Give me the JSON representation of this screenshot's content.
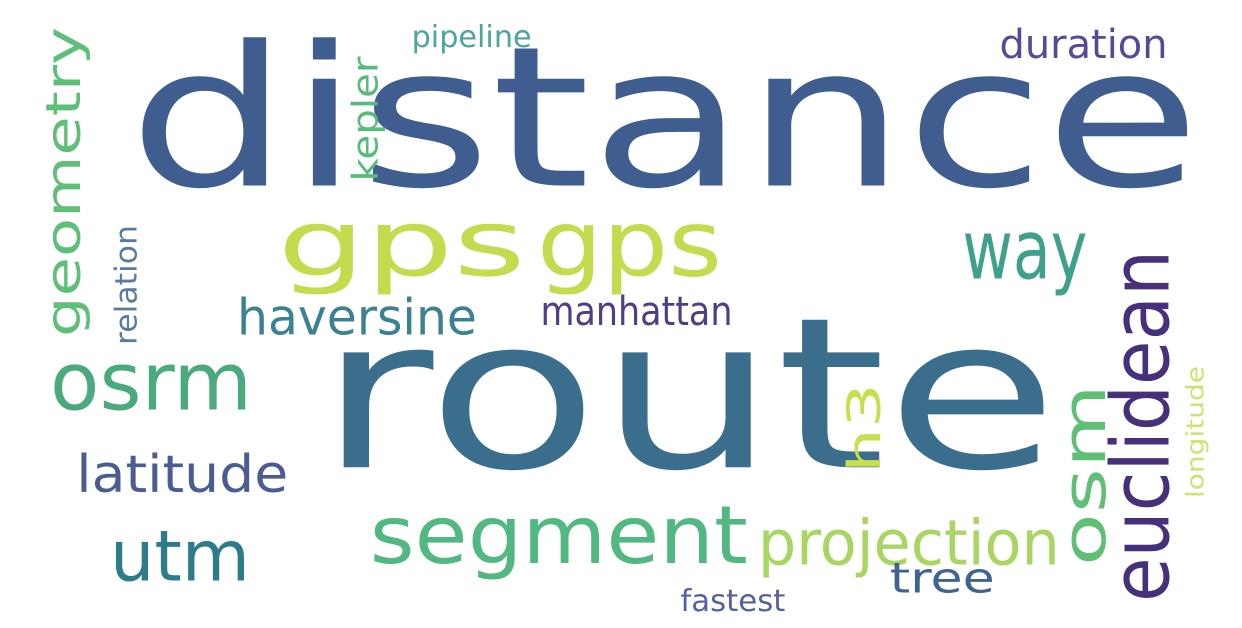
{
  "words": [
    {
      "id": "distance",
      "text": "distance",
      "color": "#3f5e8f",
      "orientation": "horizontal"
    },
    {
      "id": "route",
      "text": "route",
      "color": "#3b6e8c",
      "orientation": "horizontal"
    },
    {
      "id": "gps1",
      "text": "gps",
      "color": "#c3dc4e",
      "orientation": "horizontal"
    },
    {
      "id": "gps2",
      "text": "gps",
      "color": "#c3dc4e",
      "orientation": "horizontal"
    },
    {
      "id": "segment",
      "text": "segment",
      "color": "#52b881",
      "orientation": "horizontal"
    },
    {
      "id": "euclidean",
      "text": "euclidean",
      "color": "#46307a",
      "orientation": "vertical"
    },
    {
      "id": "osm",
      "text": "osm",
      "color": "#5fc075",
      "orientation": "vertical"
    },
    {
      "id": "way",
      "text": "way",
      "color": "#3fa08b",
      "orientation": "horizontal"
    },
    {
      "id": "osrm",
      "text": "osrm",
      "color": "#4aaa7e",
      "orientation": "horizontal"
    },
    {
      "id": "utm",
      "text": "utm",
      "color": "#2e7b8a",
      "orientation": "horizontal"
    },
    {
      "id": "geometry",
      "text": "geometry",
      "color": "#5fbe78",
      "orientation": "vertical"
    },
    {
      "id": "projection",
      "text": "projection",
      "color": "#a9d662",
      "orientation": "horizontal"
    },
    {
      "id": "haversine",
      "text": "haversine",
      "color": "#3a8291",
      "orientation": "horizontal"
    },
    {
      "id": "latitude",
      "text": "latitude",
      "color": "#4b5c92",
      "orientation": "horizontal"
    },
    {
      "id": "h3",
      "text": "h3",
      "color": "#c7df4c",
      "orientation": "vertical"
    },
    {
      "id": "tree",
      "text": "tree",
      "color": "#3f6494",
      "orientation": "horizontal"
    },
    {
      "id": "manhattan",
      "text": "manhattan",
      "color": "#4f3d86",
      "orientation": "horizontal"
    },
    {
      "id": "duration",
      "text": "duration",
      "color": "#584896",
      "orientation": "horizontal"
    },
    {
      "id": "kepler",
      "text": "kepler",
      "color": "#58ba7c",
      "orientation": "vertical"
    },
    {
      "id": "pipeline",
      "text": "pipeline",
      "color": "#4aa59a",
      "orientation": "horizontal"
    },
    {
      "id": "relation",
      "text": "relation",
      "color": "#5a7ba0",
      "orientation": "vertical"
    },
    {
      "id": "longitude",
      "text": "longitude",
      "color": "#cfe270",
      "orientation": "vertical"
    },
    {
      "id": "fastest",
      "text": "fastest",
      "color": "#5560a0",
      "orientation": "horizontal"
    }
  ]
}
